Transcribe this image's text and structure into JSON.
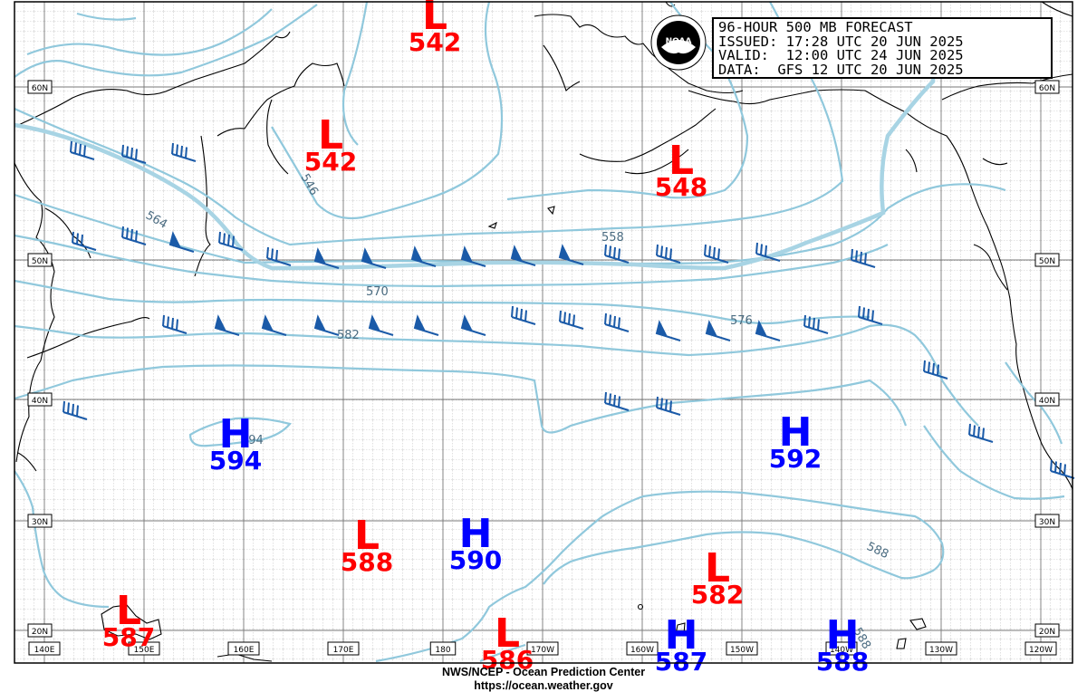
{
  "map": {
    "title_lines": [
      "96-HOUR 500 MB FORECAST",
      "ISSUED: 17:28 UTC 20 JUN 2025",
      "VALID:  12:00 UTC 24 JUN 2025",
      "DATA:  GFS 12 UTC 20 JUN 2025"
    ],
    "footer": [
      "NWS/NCEP - Ocean Prediction Center",
      "https://ocean.weather.gov"
    ],
    "logo_text": "NOAA",
    "lat_labels": [
      "60N",
      "50N",
      "40N",
      "30N",
      "20N"
    ],
    "lon_labels": [
      "140E",
      "150E",
      "160E",
      "170E",
      "180",
      "170W",
      "160W",
      "150W",
      "140W",
      "130W",
      "120W"
    ],
    "contour_labels": [
      "564",
      "546",
      "558",
      "570",
      "582",
      "576",
      "594",
      "588",
      "588"
    ],
    "systems": [
      {
        "type": "L",
        "value": "542"
      },
      {
        "type": "L",
        "value": "542"
      },
      {
        "type": "L",
        "value": "548"
      },
      {
        "type": "H",
        "value": "594"
      },
      {
        "type": "H",
        "value": "592"
      },
      {
        "type": "L",
        "value": "588"
      },
      {
        "type": "H",
        "value": "590"
      },
      {
        "type": "L",
        "value": "582"
      },
      {
        "type": "L",
        "value": "587"
      },
      {
        "type": "L",
        "value": "586"
      },
      {
        "type": "H",
        "value": "587"
      },
      {
        "type": "H",
        "value": "588"
      }
    ],
    "colors": {
      "high": "#0000ff",
      "low": "#ff0000",
      "contour": "#90c8dc",
      "barb": "#1a5aa8",
      "grid": "#888888",
      "coast": "#000000"
    }
  }
}
